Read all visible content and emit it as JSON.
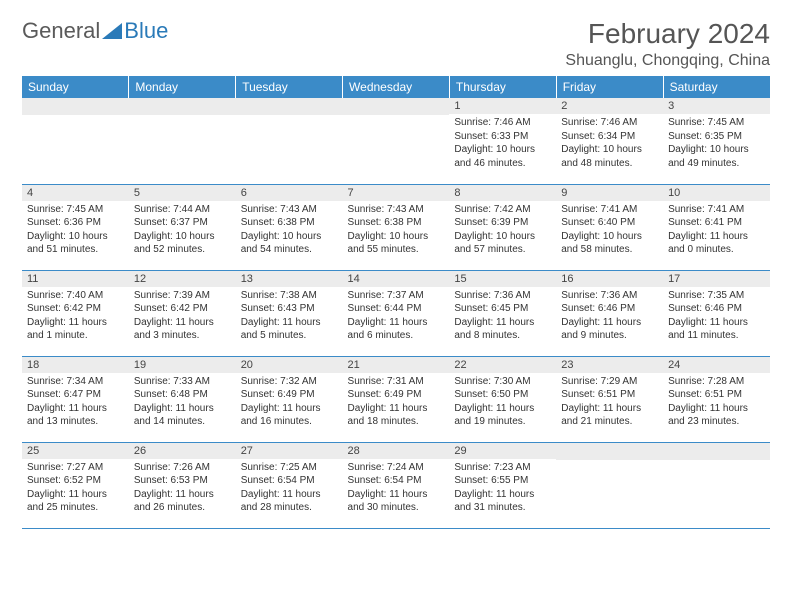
{
  "brand": {
    "part1": "General",
    "part2": "Blue"
  },
  "title": "February 2024",
  "location": "Shuanglu, Chongqing, China",
  "colors": {
    "header_bg": "#3b8bc8",
    "header_text": "#ffffff",
    "daynum_bg": "#ececec",
    "border": "#3b8bc8",
    "logo_gray": "#5a5a5a",
    "logo_blue": "#2a7ab8",
    "title_color": "#555"
  },
  "weekdays": [
    "Sunday",
    "Monday",
    "Tuesday",
    "Wednesday",
    "Thursday",
    "Friday",
    "Saturday"
  ],
  "weeks": [
    [
      null,
      null,
      null,
      null,
      {
        "n": "1",
        "sr": "7:46 AM",
        "ss": "6:33 PM",
        "dl": "10 hours and 46 minutes."
      },
      {
        "n": "2",
        "sr": "7:46 AM",
        "ss": "6:34 PM",
        "dl": "10 hours and 48 minutes."
      },
      {
        "n": "3",
        "sr": "7:45 AM",
        "ss": "6:35 PM",
        "dl": "10 hours and 49 minutes."
      }
    ],
    [
      {
        "n": "4",
        "sr": "7:45 AM",
        "ss": "6:36 PM",
        "dl": "10 hours and 51 minutes."
      },
      {
        "n": "5",
        "sr": "7:44 AM",
        "ss": "6:37 PM",
        "dl": "10 hours and 52 minutes."
      },
      {
        "n": "6",
        "sr": "7:43 AM",
        "ss": "6:38 PM",
        "dl": "10 hours and 54 minutes."
      },
      {
        "n": "7",
        "sr": "7:43 AM",
        "ss": "6:38 PM",
        "dl": "10 hours and 55 minutes."
      },
      {
        "n": "8",
        "sr": "7:42 AM",
        "ss": "6:39 PM",
        "dl": "10 hours and 57 minutes."
      },
      {
        "n": "9",
        "sr": "7:41 AM",
        "ss": "6:40 PM",
        "dl": "10 hours and 58 minutes."
      },
      {
        "n": "10",
        "sr": "7:41 AM",
        "ss": "6:41 PM",
        "dl": "11 hours and 0 minutes."
      }
    ],
    [
      {
        "n": "11",
        "sr": "7:40 AM",
        "ss": "6:42 PM",
        "dl": "11 hours and 1 minute."
      },
      {
        "n": "12",
        "sr": "7:39 AM",
        "ss": "6:42 PM",
        "dl": "11 hours and 3 minutes."
      },
      {
        "n": "13",
        "sr": "7:38 AM",
        "ss": "6:43 PM",
        "dl": "11 hours and 5 minutes."
      },
      {
        "n": "14",
        "sr": "7:37 AM",
        "ss": "6:44 PM",
        "dl": "11 hours and 6 minutes."
      },
      {
        "n": "15",
        "sr": "7:36 AM",
        "ss": "6:45 PM",
        "dl": "11 hours and 8 minutes."
      },
      {
        "n": "16",
        "sr": "7:36 AM",
        "ss": "6:46 PM",
        "dl": "11 hours and 9 minutes."
      },
      {
        "n": "17",
        "sr": "7:35 AM",
        "ss": "6:46 PM",
        "dl": "11 hours and 11 minutes."
      }
    ],
    [
      {
        "n": "18",
        "sr": "7:34 AM",
        "ss": "6:47 PM",
        "dl": "11 hours and 13 minutes."
      },
      {
        "n": "19",
        "sr": "7:33 AM",
        "ss": "6:48 PM",
        "dl": "11 hours and 14 minutes."
      },
      {
        "n": "20",
        "sr": "7:32 AM",
        "ss": "6:49 PM",
        "dl": "11 hours and 16 minutes."
      },
      {
        "n": "21",
        "sr": "7:31 AM",
        "ss": "6:49 PM",
        "dl": "11 hours and 18 minutes."
      },
      {
        "n": "22",
        "sr": "7:30 AM",
        "ss": "6:50 PM",
        "dl": "11 hours and 19 minutes."
      },
      {
        "n": "23",
        "sr": "7:29 AM",
        "ss": "6:51 PM",
        "dl": "11 hours and 21 minutes."
      },
      {
        "n": "24",
        "sr": "7:28 AM",
        "ss": "6:51 PM",
        "dl": "11 hours and 23 minutes."
      }
    ],
    [
      {
        "n": "25",
        "sr": "7:27 AM",
        "ss": "6:52 PM",
        "dl": "11 hours and 25 minutes."
      },
      {
        "n": "26",
        "sr": "7:26 AM",
        "ss": "6:53 PM",
        "dl": "11 hours and 26 minutes."
      },
      {
        "n": "27",
        "sr": "7:25 AM",
        "ss": "6:54 PM",
        "dl": "11 hours and 28 minutes."
      },
      {
        "n": "28",
        "sr": "7:24 AM",
        "ss": "6:54 PM",
        "dl": "11 hours and 30 minutes."
      },
      {
        "n": "29",
        "sr": "7:23 AM",
        "ss": "6:55 PM",
        "dl": "11 hours and 31 minutes."
      },
      null,
      null
    ]
  ],
  "labels": {
    "sunrise": "Sunrise:",
    "sunset": "Sunset:",
    "daylight": "Daylight:"
  }
}
